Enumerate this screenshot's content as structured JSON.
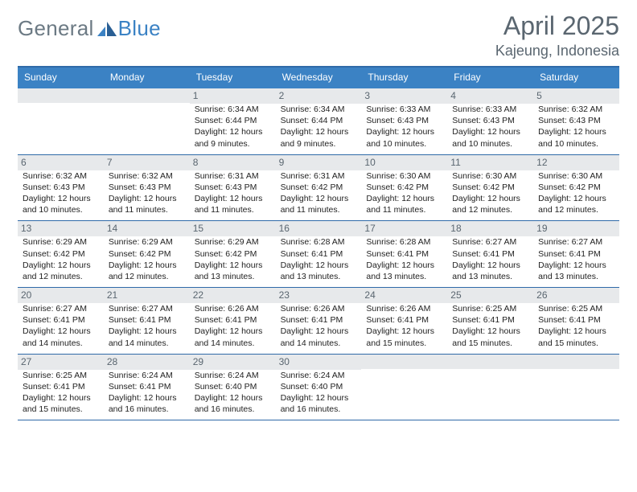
{
  "logo": {
    "general": "General",
    "blue": "Blue"
  },
  "header": {
    "title": "April 2025",
    "location": "Kajeung, Indonesia"
  },
  "colors": {
    "header_bar": "#3b82c4",
    "rule": "#2f6aa8",
    "daynum_bg": "#e7e9eb",
    "text_muted": "#5a6670",
    "text": "#222222"
  },
  "dayHeaders": [
    "Sunday",
    "Monday",
    "Tuesday",
    "Wednesday",
    "Thursday",
    "Friday",
    "Saturday"
  ],
  "weeks": [
    [
      {
        "day": "",
        "sunrise": "",
        "sunset": "",
        "daylight1": "",
        "daylight2": ""
      },
      {
        "day": "",
        "sunrise": "",
        "sunset": "",
        "daylight1": "",
        "daylight2": ""
      },
      {
        "day": "1",
        "sunrise": "Sunrise: 6:34 AM",
        "sunset": "Sunset: 6:44 PM",
        "daylight1": "Daylight: 12 hours",
        "daylight2": "and 9 minutes."
      },
      {
        "day": "2",
        "sunrise": "Sunrise: 6:34 AM",
        "sunset": "Sunset: 6:44 PM",
        "daylight1": "Daylight: 12 hours",
        "daylight2": "and 9 minutes."
      },
      {
        "day": "3",
        "sunrise": "Sunrise: 6:33 AM",
        "sunset": "Sunset: 6:43 PM",
        "daylight1": "Daylight: 12 hours",
        "daylight2": "and 10 minutes."
      },
      {
        "day": "4",
        "sunrise": "Sunrise: 6:33 AM",
        "sunset": "Sunset: 6:43 PM",
        "daylight1": "Daylight: 12 hours",
        "daylight2": "and 10 minutes."
      },
      {
        "day": "5",
        "sunrise": "Sunrise: 6:32 AM",
        "sunset": "Sunset: 6:43 PM",
        "daylight1": "Daylight: 12 hours",
        "daylight2": "and 10 minutes."
      }
    ],
    [
      {
        "day": "6",
        "sunrise": "Sunrise: 6:32 AM",
        "sunset": "Sunset: 6:43 PM",
        "daylight1": "Daylight: 12 hours",
        "daylight2": "and 10 minutes."
      },
      {
        "day": "7",
        "sunrise": "Sunrise: 6:32 AM",
        "sunset": "Sunset: 6:43 PM",
        "daylight1": "Daylight: 12 hours",
        "daylight2": "and 11 minutes."
      },
      {
        "day": "8",
        "sunrise": "Sunrise: 6:31 AM",
        "sunset": "Sunset: 6:43 PM",
        "daylight1": "Daylight: 12 hours",
        "daylight2": "and 11 minutes."
      },
      {
        "day": "9",
        "sunrise": "Sunrise: 6:31 AM",
        "sunset": "Sunset: 6:42 PM",
        "daylight1": "Daylight: 12 hours",
        "daylight2": "and 11 minutes."
      },
      {
        "day": "10",
        "sunrise": "Sunrise: 6:30 AM",
        "sunset": "Sunset: 6:42 PM",
        "daylight1": "Daylight: 12 hours",
        "daylight2": "and 11 minutes."
      },
      {
        "day": "11",
        "sunrise": "Sunrise: 6:30 AM",
        "sunset": "Sunset: 6:42 PM",
        "daylight1": "Daylight: 12 hours",
        "daylight2": "and 12 minutes."
      },
      {
        "day": "12",
        "sunrise": "Sunrise: 6:30 AM",
        "sunset": "Sunset: 6:42 PM",
        "daylight1": "Daylight: 12 hours",
        "daylight2": "and 12 minutes."
      }
    ],
    [
      {
        "day": "13",
        "sunrise": "Sunrise: 6:29 AM",
        "sunset": "Sunset: 6:42 PM",
        "daylight1": "Daylight: 12 hours",
        "daylight2": "and 12 minutes."
      },
      {
        "day": "14",
        "sunrise": "Sunrise: 6:29 AM",
        "sunset": "Sunset: 6:42 PM",
        "daylight1": "Daylight: 12 hours",
        "daylight2": "and 12 minutes."
      },
      {
        "day": "15",
        "sunrise": "Sunrise: 6:29 AM",
        "sunset": "Sunset: 6:42 PM",
        "daylight1": "Daylight: 12 hours",
        "daylight2": "and 13 minutes."
      },
      {
        "day": "16",
        "sunrise": "Sunrise: 6:28 AM",
        "sunset": "Sunset: 6:41 PM",
        "daylight1": "Daylight: 12 hours",
        "daylight2": "and 13 minutes."
      },
      {
        "day": "17",
        "sunrise": "Sunrise: 6:28 AM",
        "sunset": "Sunset: 6:41 PM",
        "daylight1": "Daylight: 12 hours",
        "daylight2": "and 13 minutes."
      },
      {
        "day": "18",
        "sunrise": "Sunrise: 6:27 AM",
        "sunset": "Sunset: 6:41 PM",
        "daylight1": "Daylight: 12 hours",
        "daylight2": "and 13 minutes."
      },
      {
        "day": "19",
        "sunrise": "Sunrise: 6:27 AM",
        "sunset": "Sunset: 6:41 PM",
        "daylight1": "Daylight: 12 hours",
        "daylight2": "and 13 minutes."
      }
    ],
    [
      {
        "day": "20",
        "sunrise": "Sunrise: 6:27 AM",
        "sunset": "Sunset: 6:41 PM",
        "daylight1": "Daylight: 12 hours",
        "daylight2": "and 14 minutes."
      },
      {
        "day": "21",
        "sunrise": "Sunrise: 6:27 AM",
        "sunset": "Sunset: 6:41 PM",
        "daylight1": "Daylight: 12 hours",
        "daylight2": "and 14 minutes."
      },
      {
        "day": "22",
        "sunrise": "Sunrise: 6:26 AM",
        "sunset": "Sunset: 6:41 PM",
        "daylight1": "Daylight: 12 hours",
        "daylight2": "and 14 minutes."
      },
      {
        "day": "23",
        "sunrise": "Sunrise: 6:26 AM",
        "sunset": "Sunset: 6:41 PM",
        "daylight1": "Daylight: 12 hours",
        "daylight2": "and 14 minutes."
      },
      {
        "day": "24",
        "sunrise": "Sunrise: 6:26 AM",
        "sunset": "Sunset: 6:41 PM",
        "daylight1": "Daylight: 12 hours",
        "daylight2": "and 15 minutes."
      },
      {
        "day": "25",
        "sunrise": "Sunrise: 6:25 AM",
        "sunset": "Sunset: 6:41 PM",
        "daylight1": "Daylight: 12 hours",
        "daylight2": "and 15 minutes."
      },
      {
        "day": "26",
        "sunrise": "Sunrise: 6:25 AM",
        "sunset": "Sunset: 6:41 PM",
        "daylight1": "Daylight: 12 hours",
        "daylight2": "and 15 minutes."
      }
    ],
    [
      {
        "day": "27",
        "sunrise": "Sunrise: 6:25 AM",
        "sunset": "Sunset: 6:41 PM",
        "daylight1": "Daylight: 12 hours",
        "daylight2": "and 15 minutes."
      },
      {
        "day": "28",
        "sunrise": "Sunrise: 6:24 AM",
        "sunset": "Sunset: 6:41 PM",
        "daylight1": "Daylight: 12 hours",
        "daylight2": "and 16 minutes."
      },
      {
        "day": "29",
        "sunrise": "Sunrise: 6:24 AM",
        "sunset": "Sunset: 6:40 PM",
        "daylight1": "Daylight: 12 hours",
        "daylight2": "and 16 minutes."
      },
      {
        "day": "30",
        "sunrise": "Sunrise: 6:24 AM",
        "sunset": "Sunset: 6:40 PM",
        "daylight1": "Daylight: 12 hours",
        "daylight2": "and 16 minutes."
      },
      {
        "day": "",
        "sunrise": "",
        "sunset": "",
        "daylight1": "",
        "daylight2": ""
      },
      {
        "day": "",
        "sunrise": "",
        "sunset": "",
        "daylight1": "",
        "daylight2": ""
      },
      {
        "day": "",
        "sunrise": "",
        "sunset": "",
        "daylight1": "",
        "daylight2": ""
      }
    ]
  ]
}
